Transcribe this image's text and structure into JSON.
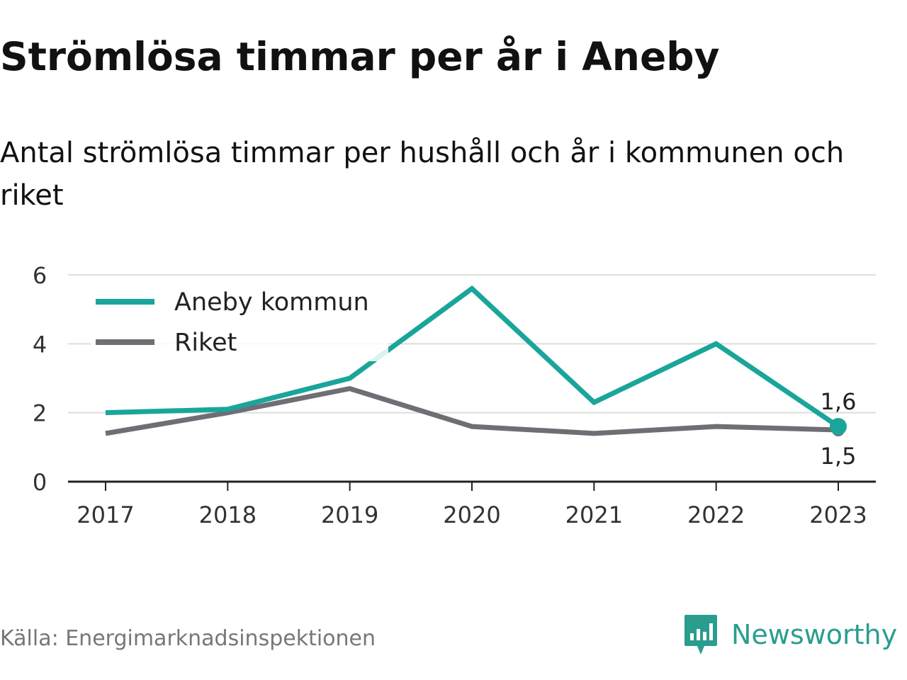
{
  "header": {
    "title": "Strömlösa timmar per år i Aneby",
    "subtitle": "Antal strömlösa timmar per hushåll och år i kommunen och riket"
  },
  "footer": {
    "source": "Källa: Energimarknadsinspektionen",
    "brand": "Newsworthy"
  },
  "colors": {
    "aneby": "#1aa59a",
    "riket": "#6f6e74",
    "grid": "#dddddd",
    "axis": "#222222",
    "brand": "#2a9d8f"
  },
  "chart_data": {
    "type": "line",
    "title": "Strömlösa timmar per år i Aneby",
    "subtitle": "Antal strömlösa timmar per hushåll och år i kommunen och riket",
    "xlabel": "",
    "ylabel": "",
    "x": [
      "2017",
      "2018",
      "2019",
      "2020",
      "2021",
      "2022",
      "2023"
    ],
    "ylim": [
      0,
      6
    ],
    "yticks": [
      "0",
      "2",
      "4",
      "6"
    ],
    "grid": true,
    "legend_position": "top-left",
    "series": [
      {
        "name": "Aneby kommun",
        "values": [
          2.0,
          2.1,
          3.0,
          5.6,
          2.3,
          4.0,
          1.6
        ],
        "end_label": "1,6"
      },
      {
        "name": "Riket",
        "values": [
          1.4,
          2.0,
          2.7,
          1.6,
          1.4,
          1.6,
          1.5
        ],
        "end_label": "1,5"
      }
    ]
  }
}
